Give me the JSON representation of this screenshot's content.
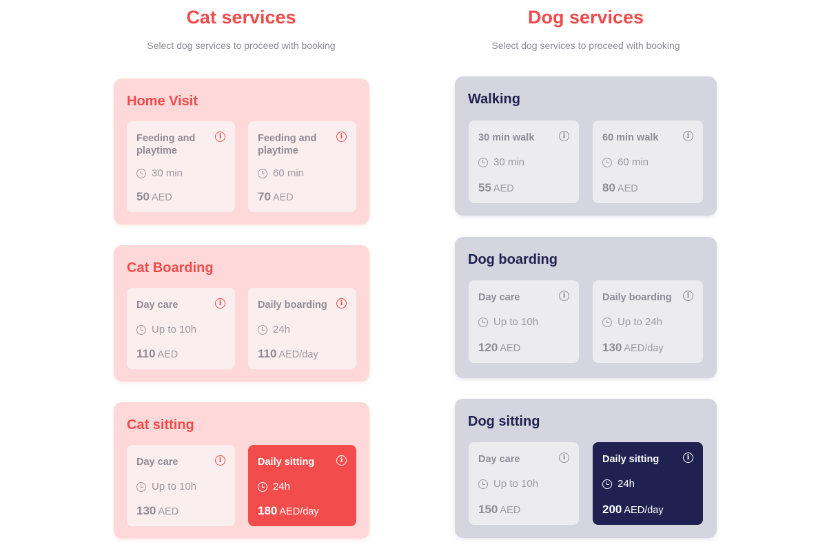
{
  "sections": [
    {
      "key": "cat",
      "title": "Cat services",
      "subtitle": "Select dog services to proceed with booking",
      "groups": [
        {
          "title": "Home Visit",
          "cards": [
            {
              "name": "Feeding and playtime",
              "duration": "30 min",
              "price": "50",
              "unit": "AED"
            },
            {
              "name": "Feeding and playtime",
              "duration": "60 min",
              "price": "70",
              "unit": "AED"
            }
          ]
        },
        {
          "title": "Cat Boarding",
          "cards": [
            {
              "name": "Day care",
              "duration": "Up to 10h",
              "price": "110",
              "unit": "AED"
            },
            {
              "name": "Daily boarding",
              "duration": "24h",
              "price": "110",
              "unit": "AED/day"
            }
          ]
        },
        {
          "title": "Cat sitting",
          "cards": [
            {
              "name": "Day care",
              "duration": "Up to 10h",
              "price": "130",
              "unit": "AED"
            },
            {
              "name": "Daily sitting",
              "duration": "24h",
              "price": "180",
              "unit": "AED/day",
              "selected": true
            }
          ]
        }
      ]
    },
    {
      "key": "dog",
      "title": "Dog services",
      "subtitle": "Select dog services to proceed with booking",
      "groups": [
        {
          "title": "Walking",
          "cards": [
            {
              "name": "30 min walk",
              "duration": "30 min",
              "price": "55",
              "unit": "AED"
            },
            {
              "name": "60 min walk",
              "duration": "60 min",
              "price": "80",
              "unit": "AED"
            }
          ]
        },
        {
          "title": "Dog boarding",
          "cards": [
            {
              "name": "Day care",
              "duration": "Up to 10h",
              "price": "120",
              "unit": "AED"
            },
            {
              "name": "Daily boarding",
              "duration": "Up to 24h",
              "price": "130",
              "unit": "AED/day"
            }
          ]
        },
        {
          "title": "Dog sitting",
          "cards": [
            {
              "name": "Day care",
              "duration": "Up to 10h",
              "price": "150",
              "unit": "AED"
            },
            {
              "name": "Daily sitting",
              "duration": "24h",
              "price": "200",
              "unit": "AED/day",
              "selected": true
            }
          ]
        }
      ]
    }
  ],
  "colors": {
    "cat_accent": "#f34c4c",
    "dog_accent": "#1f2150"
  }
}
